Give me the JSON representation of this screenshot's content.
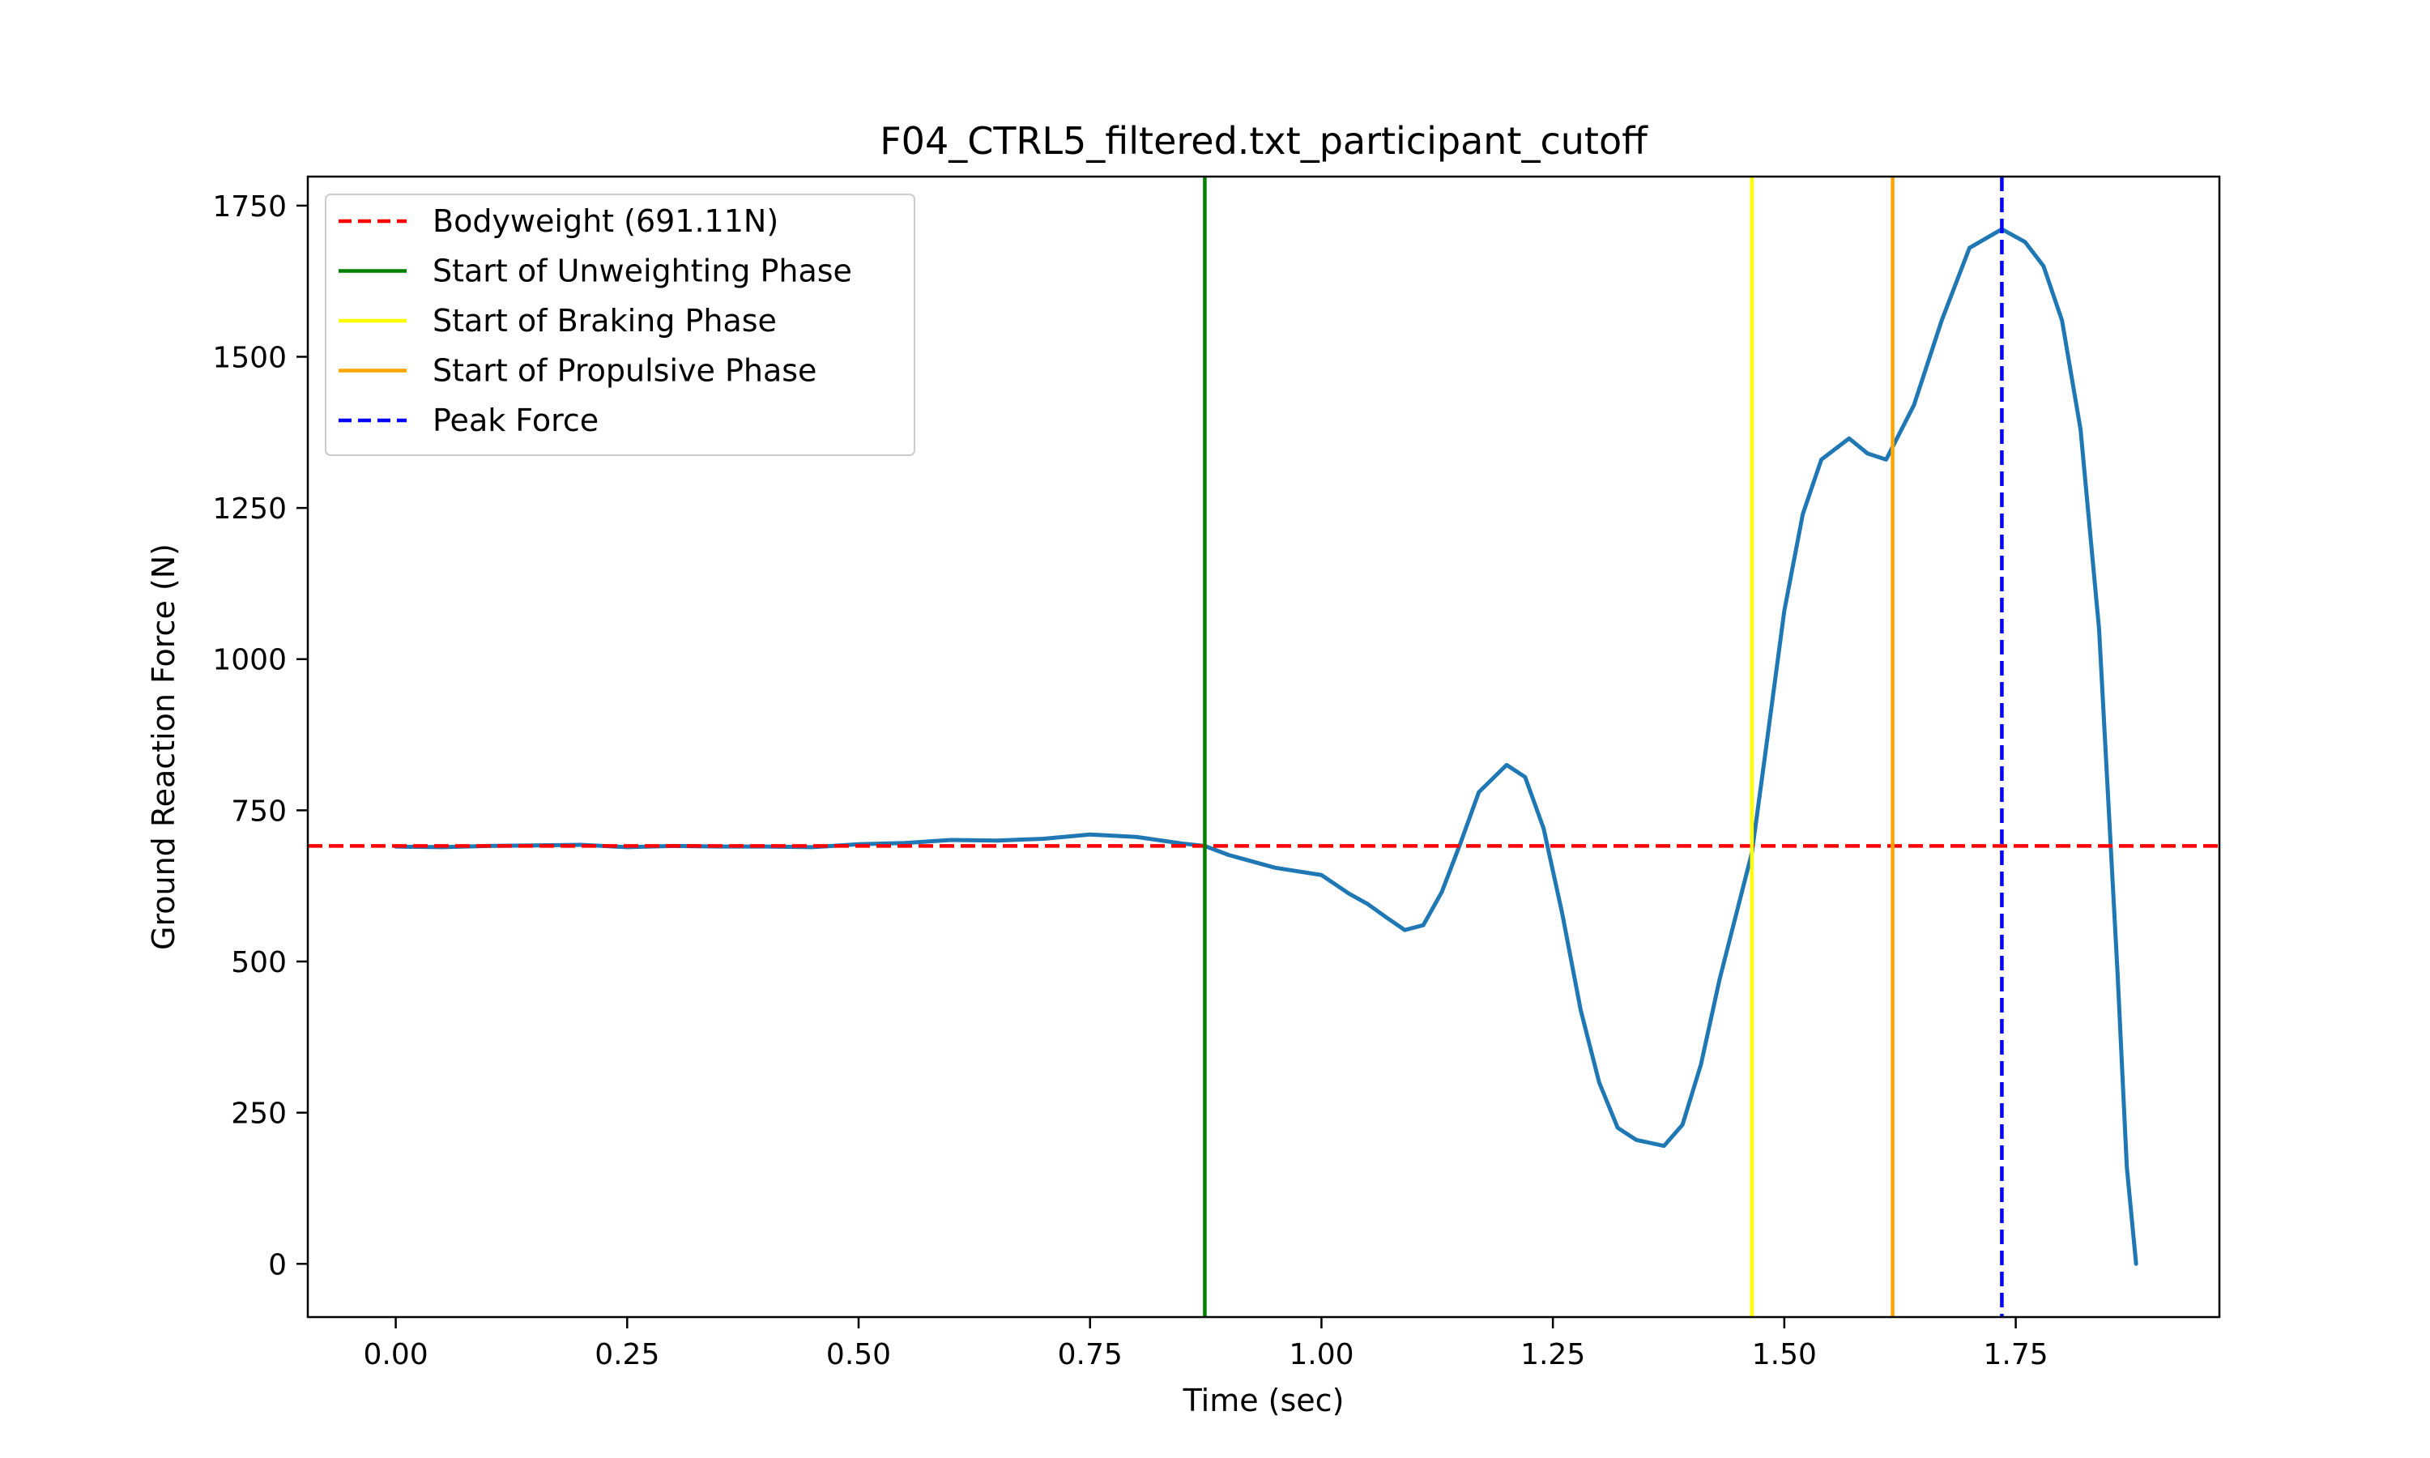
{
  "chart_data": {
    "type": "line",
    "title": "F04_CTRL5_filtered.txt_participant_cutoff",
    "xlabel": "Time (sec)",
    "ylabel": "Ground Reaction Force (N)",
    "xlim": [
      -0.095,
      1.97
    ],
    "ylim": [
      -88,
      1798
    ],
    "xticks": [
      0.0,
      0.25,
      0.5,
      0.75,
      1.0,
      1.25,
      1.5,
      1.75
    ],
    "xtick_labels": [
      "0.00",
      "0.25",
      "0.50",
      "0.75",
      "1.00",
      "1.25",
      "1.50",
      "1.75"
    ],
    "yticks": [
      0,
      250,
      500,
      750,
      1000,
      1250,
      1500,
      1750
    ],
    "ytick_labels": [
      "0",
      "250",
      "500",
      "750",
      "1000",
      "1250",
      "1500",
      "1750"
    ],
    "grid": false,
    "legend_position": "upper-left",
    "series": [
      {
        "name": "",
        "color": "#1f77b4",
        "style": "solid",
        "x": [
          0.0,
          0.05,
          0.1,
          0.15,
          0.2,
          0.25,
          0.3,
          0.35,
          0.4,
          0.45,
          0.5,
          0.55,
          0.6,
          0.65,
          0.7,
          0.75,
          0.8,
          0.85,
          0.874,
          0.9,
          0.95,
          1.0,
          1.03,
          1.05,
          1.07,
          1.09,
          1.11,
          1.13,
          1.15,
          1.17,
          1.2,
          1.22,
          1.24,
          1.26,
          1.28,
          1.3,
          1.32,
          1.34,
          1.37,
          1.39,
          1.41,
          1.43,
          1.45,
          1.465,
          1.48,
          1.5,
          1.52,
          1.54,
          1.57,
          1.59,
          1.61,
          1.64,
          1.67,
          1.7,
          1.735,
          1.76,
          1.78,
          1.8,
          1.82,
          1.84,
          1.86,
          1.87,
          1.88
        ],
        "y": [
          690,
          689,
          691,
          692,
          693,
          689,
          691,
          690,
          690,
          689,
          694,
          696,
          701,
          700,
          703,
          710,
          706,
          695,
          691,
          676,
          655,
          643,
          612,
          595,
          573,
          552,
          560,
          615,
          695,
          780,
          825,
          805,
          720,
          580,
          420,
          300,
          225,
          205,
          195,
          230,
          330,
          470,
          590,
          680,
          850,
          1080,
          1240,
          1330,
          1365,
          1340,
          1330,
          1420,
          1560,
          1680,
          1711,
          1690,
          1650,
          1560,
          1380,
          1050,
          480,
          160,
          0
        ]
      }
    ],
    "reference_lines": [
      {
        "name": "Bodyweight (691.11N)",
        "orientation": "horizontal",
        "value": 691.11,
        "color": "#ff0000",
        "style": "dashed"
      },
      {
        "name": "Start of Unweighting Phase",
        "orientation": "vertical",
        "value": 0.874,
        "color": "#008000",
        "style": "solid"
      },
      {
        "name": "Start of Braking Phase",
        "orientation": "vertical",
        "value": 1.465,
        "color": "#ffff00",
        "style": "solid"
      },
      {
        "name": "Start of Propulsive Phase",
        "orientation": "vertical",
        "value": 1.617,
        "color": "#ffa500",
        "style": "solid"
      },
      {
        "name": "Peak Force",
        "orientation": "vertical",
        "value": 1.735,
        "color": "#0000ff",
        "style": "dashed"
      }
    ]
  }
}
